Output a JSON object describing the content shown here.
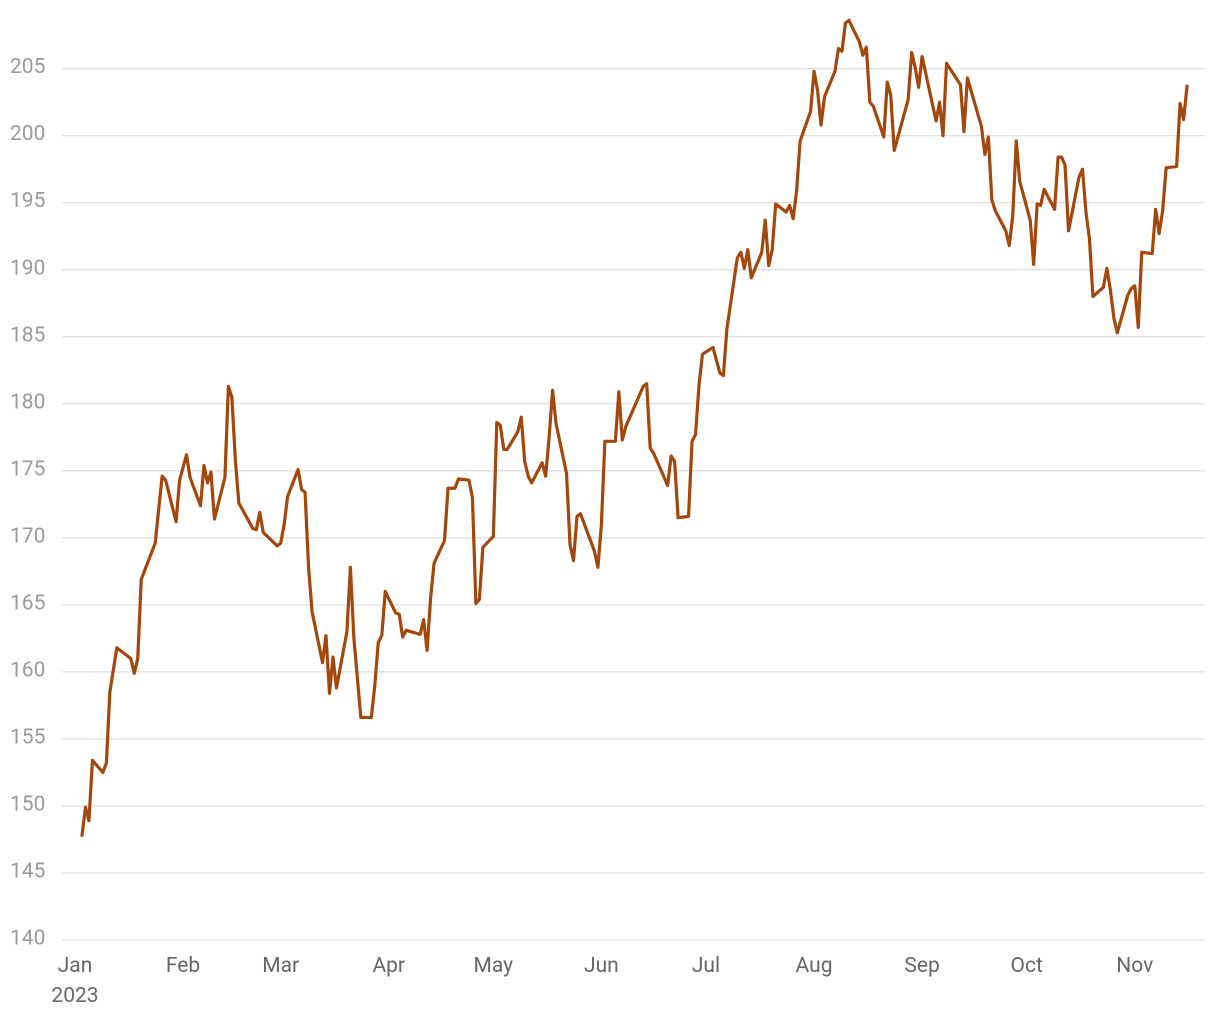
{
  "chart_data": {
    "type": "line",
    "color": "#a3470c",
    "grid": true,
    "x": [
      "2023-01-03",
      "2023-01-04",
      "2023-01-05",
      "2023-01-06",
      "2023-01-09",
      "2023-01-10",
      "2023-01-11",
      "2023-01-13",
      "2023-01-17",
      "2023-01-18",
      "2023-01-19",
      "2023-01-20",
      "2023-01-24",
      "2023-01-26",
      "2023-01-27",
      "2023-01-30",
      "2023-01-31",
      "2023-02-02",
      "2023-02-03",
      "2023-02-06",
      "2023-02-07",
      "2023-02-08",
      "2023-02-09",
      "2023-02-10",
      "2023-02-13",
      "2023-02-14",
      "2023-02-15",
      "2023-02-16",
      "2023-02-17",
      "2023-02-21",
      "2023-02-22",
      "2023-02-23",
      "2023-02-24",
      "2023-02-28",
      "2023-03-01",
      "2023-03-02",
      "2023-03-03",
      "2023-03-06",
      "2023-03-07",
      "2023-03-08",
      "2023-03-09",
      "2023-03-10",
      "2023-03-13",
      "2023-03-14",
      "2023-03-15",
      "2023-03-16",
      "2023-03-17",
      "2023-03-20",
      "2023-03-21",
      "2023-03-22",
      "2023-03-24",
      "2023-03-27",
      "2023-03-28",
      "2023-03-29",
      "2023-03-30",
      "2023-03-31",
      "2023-04-03",
      "2023-04-04",
      "2023-04-05",
      "2023-04-06",
      "2023-04-10",
      "2023-04-11",
      "2023-04-12",
      "2023-04-13",
      "2023-04-14",
      "2023-04-17",
      "2023-04-18",
      "2023-04-20",
      "2023-04-21",
      "2023-04-24",
      "2023-04-25",
      "2023-04-26",
      "2023-04-27",
      "2023-04-28",
      "2023-05-01",
      "2023-05-02",
      "2023-05-03",
      "2023-05-04",
      "2023-05-05",
      "2023-05-08",
      "2023-05-09",
      "2023-05-10",
      "2023-05-11",
      "2023-05-12",
      "2023-05-15",
      "2023-05-16",
      "2023-05-17",
      "2023-05-18",
      "2023-05-19",
      "2023-05-22",
      "2023-05-23",
      "2023-05-24",
      "2023-05-25",
      "2023-05-26",
      "2023-05-30",
      "2023-05-31",
      "2023-06-01",
      "2023-06-02",
      "2023-06-05",
      "2023-06-06",
      "2023-06-07",
      "2023-06-08",
      "2023-06-13",
      "2023-06-14",
      "2023-06-15",
      "2023-06-16",
      "2023-06-20",
      "2023-06-21",
      "2023-06-22",
      "2023-06-23",
      "2023-06-26",
      "2023-06-27",
      "2023-06-28",
      "2023-06-29",
      "2023-06-30",
      "2023-07-03",
      "2023-07-05",
      "2023-07-06",
      "2023-07-07",
      "2023-07-10",
      "2023-07-11",
      "2023-07-12",
      "2023-07-13",
      "2023-07-14",
      "2023-07-17",
      "2023-07-18",
      "2023-07-19",
      "2023-07-20",
      "2023-07-21",
      "2023-07-24",
      "2023-07-25",
      "2023-07-26",
      "2023-07-27",
      "2023-07-28",
      "2023-07-31",
      "2023-08-01",
      "2023-08-02",
      "2023-08-03",
      "2023-08-04",
      "2023-08-07",
      "2023-08-08",
      "2023-08-09",
      "2023-08-10",
      "2023-08-11",
      "2023-08-14",
      "2023-08-15",
      "2023-08-16",
      "2023-08-17",
      "2023-08-18",
      "2023-08-21",
      "2023-08-22",
      "2023-08-23",
      "2023-08-24",
      "2023-08-28",
      "2023-08-29",
      "2023-08-30",
      "2023-08-31",
      "2023-09-01",
      "2023-09-05",
      "2023-09-06",
      "2023-09-07",
      "2023-09-08",
      "2023-09-12",
      "2023-09-13",
      "2023-09-14",
      "2023-09-18",
      "2023-09-19",
      "2023-09-20",
      "2023-09-21",
      "2023-09-22",
      "2023-09-25",
      "2023-09-26",
      "2023-09-27",
      "2023-09-28",
      "2023-09-29",
      "2023-10-02",
      "2023-10-03",
      "2023-10-04",
      "2023-10-05",
      "2023-10-06",
      "2023-10-09",
      "2023-10-10",
      "2023-10-11",
      "2023-10-12",
      "2023-10-13",
      "2023-10-16",
      "2023-10-17",
      "2023-10-18",
      "2023-10-19",
      "2023-10-20",
      "2023-10-23",
      "2023-10-24",
      "2023-10-25",
      "2023-10-26",
      "2023-10-27",
      "2023-10-30",
      "2023-10-31",
      "2023-11-01",
      "2023-11-02",
      "2023-11-03",
      "2023-11-06",
      "2023-11-07",
      "2023-11-08",
      "2023-11-09",
      "2023-11-10",
      "2023-11-13",
      "2023-11-14",
      "2023-11-15",
      "2023-11-16"
    ],
    "values": [
      147.8,
      149.9,
      148.9,
      153.4,
      152.5,
      153.2,
      158.5,
      161.8,
      161.0,
      159.9,
      161.0,
      166.9,
      169.6,
      174.6,
      174.3,
      171.2,
      174.3,
      176.2,
      174.5,
      172.4,
      175.4,
      174.1,
      174.9,
      171.4,
      174.5,
      181.3,
      180.5,
      175.8,
      172.6,
      170.7,
      170.6,
      171.9,
      170.4,
      169.4,
      169.6,
      171.0,
      173.1,
      175.1,
      173.6,
      173.4,
      167.8,
      164.5,
      160.7,
      162.7,
      158.4,
      161.1,
      158.8,
      163.0,
      167.8,
      162.5,
      156.6,
      156.6,
      159.0,
      162.2,
      162.7,
      166.0,
      164.4,
      164.3,
      162.6,
      163.1,
      162.8,
      163.9,
      161.6,
      165.5,
      168.1,
      169.8,
      173.7,
      173.7,
      174.4,
      174.3,
      173.0,
      165.1,
      165.4,
      169.3,
      170.1,
      178.6,
      178.4,
      176.6,
      176.6,
      177.9,
      179.0,
      175.7,
      174.6,
      174.1,
      175.6,
      174.6,
      177.5,
      181.0,
      178.5,
      174.8,
      169.5,
      168.3,
      171.6,
      171.8,
      169.0,
      167.8,
      171.0,
      177.2,
      177.2,
      180.9,
      177.3,
      178.3,
      181.3,
      181.5,
      176.7,
      176.3,
      173.9,
      176.1,
      175.7,
      171.5,
      171.6,
      177.2,
      177.7,
      181.4,
      183.7,
      184.2,
      182.3,
      182.1,
      185.6,
      190.9,
      191.3,
      190.1,
      191.5,
      189.4,
      191.3,
      193.7,
      190.3,
      191.5,
      194.9,
      194.3,
      194.8,
      193.8,
      195.9,
      199.6,
      201.8,
      204.8,
      203.4,
      200.8,
      202.9,
      204.8,
      206.5,
      206.3,
      208.4,
      208.6,
      207.0,
      206.0,
      206.6,
      202.5,
      202.2,
      199.9,
      204.0,
      203.0,
      198.9,
      202.7,
      206.2,
      205.1,
      203.6,
      205.9,
      201.1,
      202.5,
      200.0,
      205.4,
      203.8,
      200.3,
      204.3,
      200.7,
      198.6,
      199.9,
      195.2,
      194.4,
      192.9,
      191.8,
      194.0,
      199.6,
      196.6,
      193.7,
      190.4,
      194.9,
      194.8,
      196.0,
      194.5,
      198.4,
      198.4,
      197.8,
      192.9,
      196.9,
      197.5,
      194.3,
      192.3,
      188.0,
      188.7,
      190.1,
      188.5,
      186.4,
      185.3,
      188.1,
      188.6,
      188.8,
      185.7,
      191.3,
      191.2,
      194.5,
      192.7,
      194.4,
      197.6,
      197.7,
      202.4,
      201.2,
      203.7
    ],
    "xlim": [
      "2023-01-01",
      "2023-11-20"
    ],
    "xticks": [
      {
        "value": "2023-01-01",
        "label": "Jan\n2023"
      },
      {
        "value": "2023-02-01",
        "label": "Feb"
      },
      {
        "value": "2023-03-01",
        "label": "Mar"
      },
      {
        "value": "2023-04-01",
        "label": "Apr"
      },
      {
        "value": "2023-05-01",
        "label": "May"
      },
      {
        "value": "2023-06-01",
        "label": "Jun"
      },
      {
        "value": "2023-07-01",
        "label": "Jul"
      },
      {
        "value": "2023-08-01",
        "label": "Aug"
      },
      {
        "value": "2023-09-01",
        "label": "Sep"
      },
      {
        "value": "2023-10-01",
        "label": "Oct"
      },
      {
        "value": "2023-11-01",
        "label": "Nov"
      }
    ],
    "ylim": [
      140,
      209
    ],
    "yticks": [
      140,
      145,
      150,
      155,
      160,
      165,
      170,
      175,
      180,
      185,
      190,
      195,
      200,
      205
    ]
  }
}
